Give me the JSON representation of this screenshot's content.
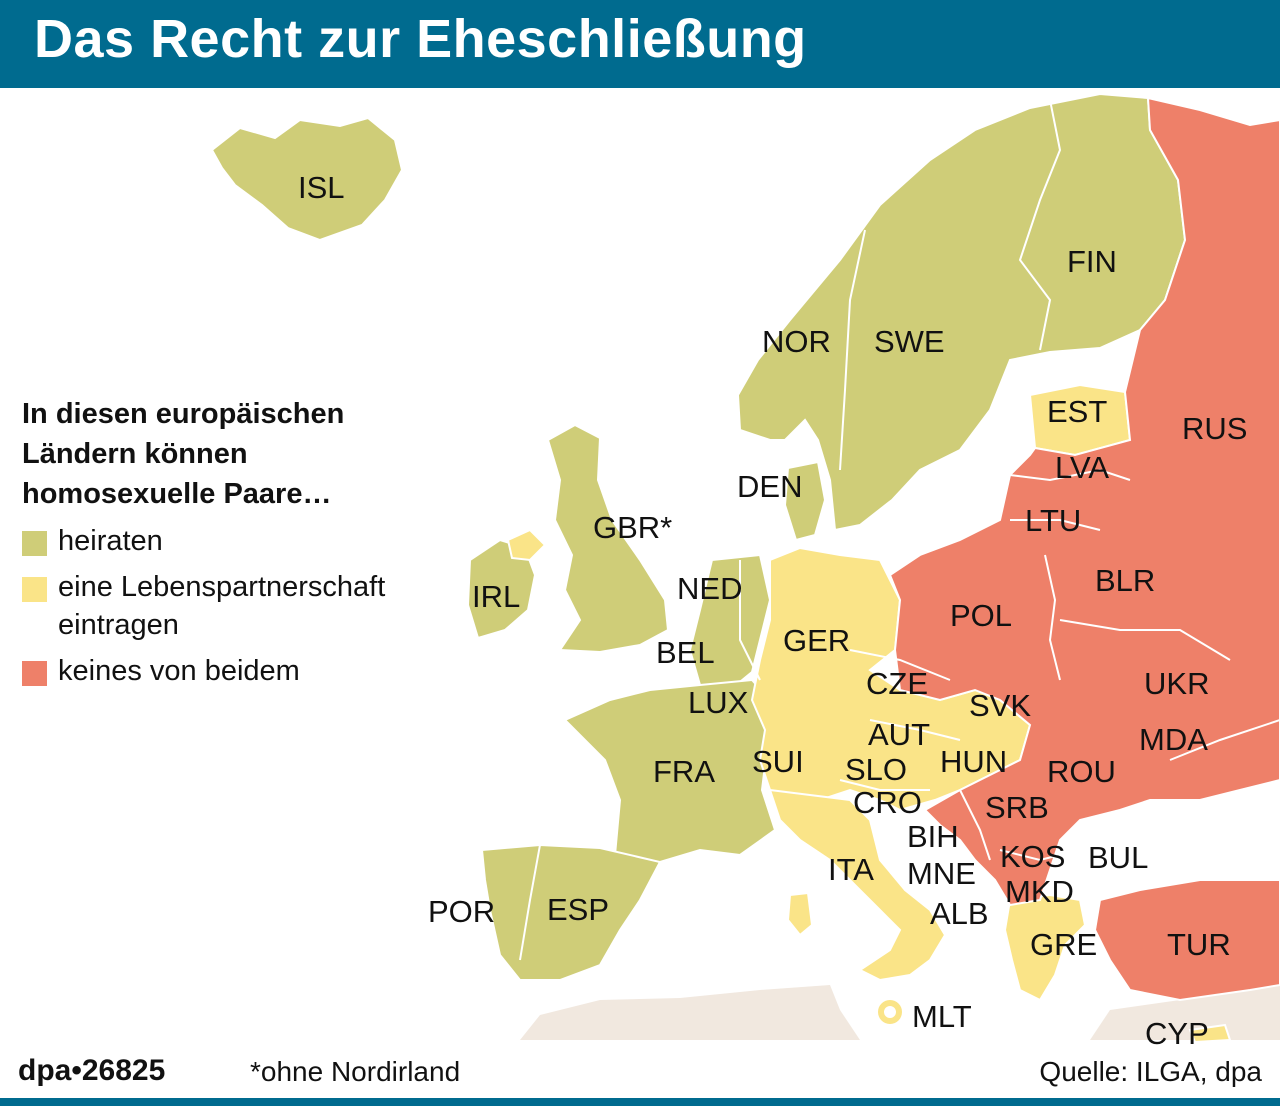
{
  "title": "Das Recht zur Eheschließung",
  "colors": {
    "header": "#006b8f",
    "marry": "#cfcd78",
    "partnership": "#fae488",
    "none": "#ee8069",
    "nonEurope": "#f1e8df",
    "border": "#ffffff"
  },
  "legend": {
    "title_line1": "In diesen europäischen",
    "title_line2": "Ländern können",
    "title_line3": "homosexuelle Paare…",
    "marry": "heiraten",
    "partnership_line1": "eine Lebenspartnerschaft",
    "partnership_line2": "eintragen",
    "none": "keines von beidem"
  },
  "countries": {
    "ISL": "ISL",
    "NOR": "NOR",
    "SWE": "SWE",
    "FIN": "FIN",
    "EST": "EST",
    "RUS": "RUS",
    "LVA": "LVA",
    "LTU": "LTU",
    "DEN": "DEN",
    "GBR": "GBR*",
    "IRL": "IRL",
    "NED": "NED",
    "BEL": "BEL",
    "LUX": "LUX",
    "GER": "GER",
    "POL": "POL",
    "BLR": "BLR",
    "CZE": "CZE",
    "SVK": "SVK",
    "UKR": "UKR",
    "AUT": "AUT",
    "HUN": "HUN",
    "MDA": "MDA",
    "FRA": "FRA",
    "SUI": "SUI",
    "SLO": "SLO",
    "ROU": "ROU",
    "CRO": "CRO",
    "SRB": "SRB",
    "BIH": "BIH",
    "KOS": "KOS",
    "BUL": "BUL",
    "ITA": "ITA",
    "MNE": "MNE",
    "MKD": "MKD",
    "POR": "POR",
    "ESP": "ESP",
    "ALB": "ALB",
    "GRE": "GRE",
    "TUR": "TUR",
    "MLT": "MLT",
    "CYP": "CYP"
  },
  "footer": {
    "id": "dpa•26825",
    "footnote": "*ohne Nordirland",
    "source": "Quelle: ILGA, dpa"
  }
}
